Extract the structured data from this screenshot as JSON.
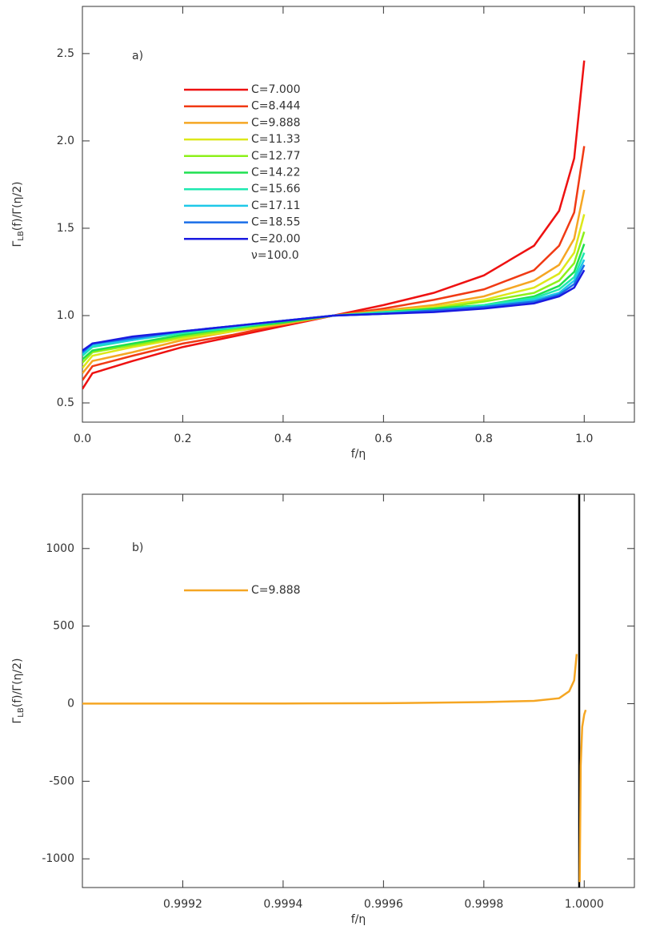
{
  "chart_data": [
    {
      "type": "line",
      "panel_label": "a)",
      "annotation": "ν=100.0",
      "xlabel": "f/η",
      "ylabel": {
        "main": "Γ",
        "sub": "LB",
        "rest": "(f)/Γ(η/2)"
      },
      "xlim": [
        0,
        1.1
      ],
      "ylim": [
        0.39,
        2.77
      ],
      "xticks": [
        {
          "value": 0,
          "label": "0.0"
        },
        0.2,
        0.4,
        0.6,
        0.8,
        {
          "value": 1,
          "label": "1.0"
        }
      ],
      "yticks": [
        0.5,
        {
          "value": 1,
          "label": "1.0"
        },
        1.5,
        {
          "value": 2,
          "label": "2.0"
        },
        2.5
      ],
      "x": [
        0,
        0.02,
        0.1,
        0.2,
        0.3,
        0.4,
        0.5,
        0.6,
        0.7,
        0.8,
        0.9,
        0.95,
        0.98,
        1.0
      ],
      "series": [
        {
          "name": "C=7.000",
          "color": "#ee1111",
          "values": [
            0.58,
            0.67,
            0.74,
            0.82,
            0.88,
            0.94,
            1.0,
            1.06,
            1.13,
            1.23,
            1.4,
            1.6,
            1.9,
            2.46
          ]
        },
        {
          "name": "C=8.444",
          "color": "#f03a14",
          "values": [
            0.63,
            0.71,
            0.77,
            0.84,
            0.89,
            0.95,
            1.0,
            1.04,
            1.09,
            1.15,
            1.26,
            1.4,
            1.59,
            1.97
          ]
        },
        {
          "name": "C=9.888",
          "color": "#f5a623",
          "values": [
            0.67,
            0.74,
            0.79,
            0.86,
            0.91,
            0.95,
            1.0,
            1.03,
            1.06,
            1.11,
            1.2,
            1.29,
            1.44,
            1.72
          ]
        },
        {
          "name": "C=11.33",
          "color": "#dde81a",
          "values": [
            0.7,
            0.77,
            0.82,
            0.87,
            0.91,
            0.96,
            1.0,
            1.02,
            1.05,
            1.09,
            1.16,
            1.24,
            1.36,
            1.58
          ]
        },
        {
          "name": "C=12.77",
          "color": "#8cf01a",
          "values": [
            0.73,
            0.79,
            0.83,
            0.88,
            0.92,
            0.96,
            1.0,
            1.02,
            1.04,
            1.08,
            1.13,
            1.2,
            1.3,
            1.48
          ]
        },
        {
          "name": "C=14.22",
          "color": "#1ee050",
          "values": [
            0.75,
            0.8,
            0.84,
            0.89,
            0.93,
            0.96,
            1.0,
            1.02,
            1.04,
            1.06,
            1.11,
            1.17,
            1.25,
            1.41
          ]
        },
        {
          "name": "C=15.66",
          "color": "#1ee8b0",
          "values": [
            0.77,
            0.82,
            0.86,
            0.9,
            0.93,
            0.97,
            1.0,
            1.02,
            1.03,
            1.06,
            1.1,
            1.15,
            1.22,
            1.36
          ]
        },
        {
          "name": "C=17.11",
          "color": "#1ec8e8",
          "values": [
            0.78,
            0.83,
            0.86,
            0.91,
            0.94,
            0.97,
            1.0,
            1.01,
            1.03,
            1.05,
            1.09,
            1.13,
            1.2,
            1.32
          ]
        },
        {
          "name": "C=18.55",
          "color": "#1a6ee8",
          "values": [
            0.79,
            0.84,
            0.87,
            0.91,
            0.94,
            0.97,
            1.0,
            1.01,
            1.03,
            1.05,
            1.08,
            1.12,
            1.18,
            1.29
          ]
        },
        {
          "name": "C=20.00",
          "color": "#1a1ae0",
          "values": [
            0.8,
            0.84,
            0.88,
            0.91,
            0.94,
            0.97,
            1.0,
            1.01,
            1.02,
            1.04,
            1.07,
            1.11,
            1.16,
            1.26
          ]
        }
      ]
    },
    {
      "type": "line",
      "panel_label": "b)",
      "xlabel": "f/η",
      "ylabel": {
        "main": "Γ",
        "sub": "LB",
        "rest": "(f)/Γ(η/2)"
      },
      "xlim": [
        0.999,
        1.0001
      ],
      "ylim": [
        -1185,
        1350
      ],
      "xticks": [
        0.9992,
        0.9994,
        0.9996,
        0.9998,
        {
          "value": 1,
          "label": "1.0000"
        }
      ],
      "yticks": [
        -1000,
        -500,
        0,
        500,
        1000
      ],
      "asymptote": {
        "x": 0.99999,
        "color": "#000000"
      },
      "x": [
        0.999,
        0.9994,
        0.9996,
        0.9998,
        0.9999,
        0.99995,
        0.99997,
        0.99998,
        0.999985,
        0.999988,
        0.999991,
        0.999993,
        0.999996,
        1.0,
        1.000003
      ],
      "series": [
        {
          "name": "C=9.888",
          "color": "#f5a623",
          "values": [
            0.5,
            1.5,
            3,
            10,
            18,
            35,
            80,
            150,
            320,
            null,
            -1150,
            -400,
            -150,
            -70,
            -40
          ]
        }
      ]
    }
  ]
}
